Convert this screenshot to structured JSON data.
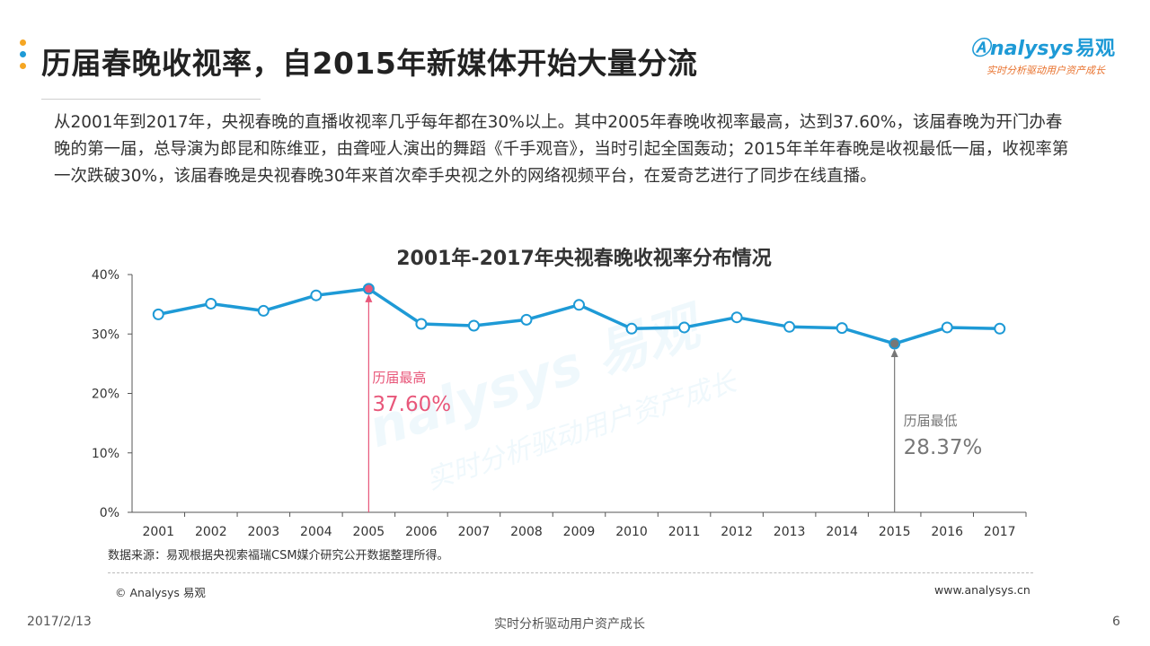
{
  "header": {
    "title": "历届春晚收视率，自2015年新媒体开始大量分流",
    "bullet_colors": [
      "#f5a623",
      "#1e9ad6",
      "#f5a623"
    ]
  },
  "logo": {
    "brand": "nalysys",
    "brand_cn": "易观",
    "slogan": "实时分析驱动用户资产成长"
  },
  "intro": {
    "text": "从2001年到2017年，央视春晚的直播收视率几乎每年都在30%以上。其中2005年春晚收视率最高，达到37.60%，该届春晚为开门办春晚的第一届，总导演为郎昆和陈维亚，由聋哑人演出的舞蹈《千手观音》，当时引起全国轰动；2015年羊年春晚是收视最低一届，收视率第一次跌破30%，该届春晚是央视春晚30年来首次牵手央视之外的网络视频平台，在爱奇艺进行了同步在线直播。"
  },
  "chart_data": {
    "type": "line",
    "title": "2001年-2017年央视春晚收视率分布情况",
    "xlabel": "",
    "ylabel": "",
    "categories": [
      "2001",
      "2002",
      "2003",
      "2004",
      "2005",
      "2006",
      "2007",
      "2008",
      "2009",
      "2010",
      "2011",
      "2012",
      "2013",
      "2014",
      "2015",
      "2016",
      "2017"
    ],
    "series": [
      {
        "name": "收视率",
        "values": [
          33.3,
          35.1,
          33.9,
          36.5,
          37.6,
          31.7,
          31.4,
          32.4,
          34.9,
          30.9,
          31.1,
          32.8,
          31.2,
          31.0,
          28.37,
          31.1,
          30.9
        ]
      }
    ],
    "ylim": [
      0,
      40
    ],
    "yticks": [
      0,
      10,
      20,
      30,
      40
    ],
    "ytick_labels": [
      "0%",
      "10%",
      "20%",
      "30%",
      "40%"
    ],
    "line_color": "#1e9ad6",
    "annotations": [
      {
        "category": "2005",
        "label": "历届最高",
        "value_text": "37.60%",
        "color": "#e8577a"
      },
      {
        "category": "2015",
        "label": "历届最低",
        "value_text": "28.37%",
        "color": "#777777"
      }
    ],
    "watermark": {
      "brand": "nalysys 易观",
      "slogan": "实时分析驱动用户资产成长"
    }
  },
  "source": {
    "text": "数据来源：易观根据央视索福瑞CSM媒介研究公开数据整理所得。"
  },
  "footer": {
    "copyright": "© Analysys 易观",
    "website": "www.analysys.cn",
    "date": "2017/2/13",
    "slogan": "实时分析驱动用户资产成长",
    "page": "6"
  }
}
